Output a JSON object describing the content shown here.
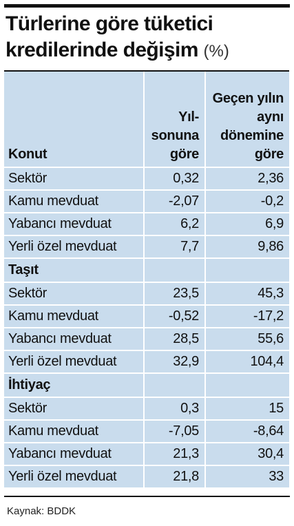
{
  "title": {
    "line1": "Türlerine göre tüketici",
    "line2": "kredilerinde değişim",
    "unit": "(%)"
  },
  "table": {
    "header": {
      "col1": "Konut",
      "col2": "Yıl-sonuna göre",
      "col3": "Geçen yılın aynı dönemine göre"
    },
    "rows": [
      {
        "label": "Sektör",
        "ytd": "0,32",
        "yoy": "2,36"
      },
      {
        "label": "Kamu mevduat",
        "ytd": "-2,07",
        "yoy": "-0,2"
      },
      {
        "label": "Yabancı mevduat",
        "ytd": "6,2",
        "yoy": "6,9"
      },
      {
        "label": "Yerli özel mevduat",
        "ytd": "7,7",
        "yoy": "9,86"
      },
      {
        "section": "Taşıt"
      },
      {
        "label": "Sektör",
        "ytd": "23,5",
        "yoy": "45,3"
      },
      {
        "label": "Kamu mevduat",
        "ytd": "-0,52",
        "yoy": "-17,2"
      },
      {
        "label": "Yabancı mevduat",
        "ytd": "28,5",
        "yoy": "55,6"
      },
      {
        "label": "Yerli özel mevduat",
        "ytd": "32,9",
        "yoy": "104,4"
      },
      {
        "section": "İhtiyaç"
      },
      {
        "label": "Sektör",
        "ytd": "0,3",
        "yoy": "15"
      },
      {
        "label": "Kamu mevduat",
        "ytd": "-7,05",
        "yoy": "-8,64"
      },
      {
        "label": "Yabancı mevduat",
        "ytd": "21,3",
        "yoy": "30,4"
      },
      {
        "label": "Yerli özel mevduat",
        "ytd": "21,8",
        "yoy": "33"
      }
    ]
  },
  "source": "Kaynak: BDDK"
}
